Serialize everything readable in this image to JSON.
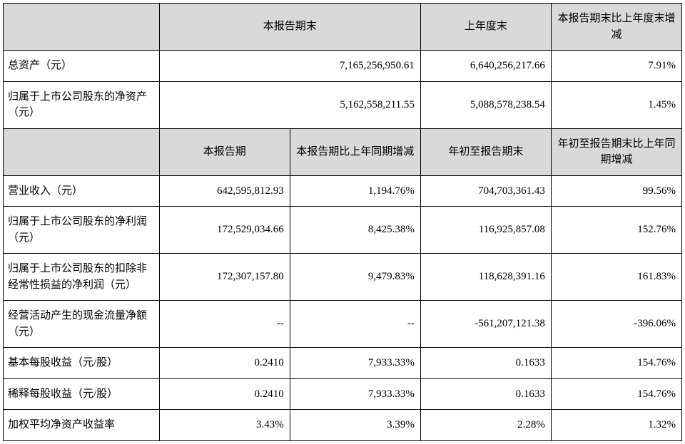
{
  "section1": {
    "headers": [
      "",
      "本报告期末",
      "上年度末",
      "本报告期末比上年度末增减"
    ],
    "rows": [
      {
        "label": "总资产（元）",
        "v1": "7,165,256,950.61",
        "v2": "6,640,256,217.66",
        "v3": "7.91%"
      },
      {
        "label": "归属于上市公司股东的净资产（元）",
        "v1": "5,162,558,211.55",
        "v2": "5,088,578,238.54",
        "v3": "1.45%"
      }
    ]
  },
  "section2": {
    "headers": [
      "",
      "本报告期",
      "本报告期比上年同期增减",
      "年初至报告期末",
      "年初至报告期末比上年同期增减"
    ],
    "rows": [
      {
        "label": "营业收入（元）",
        "c1": "642,595,812.93",
        "c2": "1,194.76%",
        "c3": "704,703,361.43",
        "c4": "99.56%"
      },
      {
        "label": "归属于上市公司股东的净利润（元）",
        "c1": "172,529,034.66",
        "c2": "8,425.38%",
        "c3": "116,925,857.08",
        "c4": "152.76%"
      },
      {
        "label": "归属于上市公司股东的扣除非经常性损益的净利润（元）",
        "c1": "172,307,157.80",
        "c2": "9,479.83%",
        "c3": "118,628,391.16",
        "c4": "161.83%"
      },
      {
        "label": "经营活动产生的现金流量净额（元）",
        "c1": "--",
        "c2": "--",
        "c3": "-561,207,121.38",
        "c4": "-396.06%"
      },
      {
        "label": "基本每股收益（元/股）",
        "c1": "0.2410",
        "c2": "7,933.33%",
        "c3": "0.1633",
        "c4": "154.76%"
      },
      {
        "label": "稀释每股收益（元/股）",
        "c1": "0.2410",
        "c2": "7,933.33%",
        "c3": "0.1633",
        "c4": "154.76%"
      },
      {
        "label": "加权平均净资产收益率",
        "c1": "3.43%",
        "c2": "3.39%",
        "c3": "2.28%",
        "c4": "1.32%"
      }
    ]
  },
  "styling": {
    "type": "table",
    "header_bg": "#d9d9d9",
    "border_color": "#000000",
    "text_color": "#000000",
    "background_color": "#ffffff",
    "font_family": "SimSun",
    "label_fontsize": 15,
    "value_fontsize": 15,
    "label_align": "left",
    "value_align": "right",
    "header_align": "center",
    "col_widths_pct": [
      23,
      19.25,
      19.25,
      19.25,
      19.25
    ]
  }
}
